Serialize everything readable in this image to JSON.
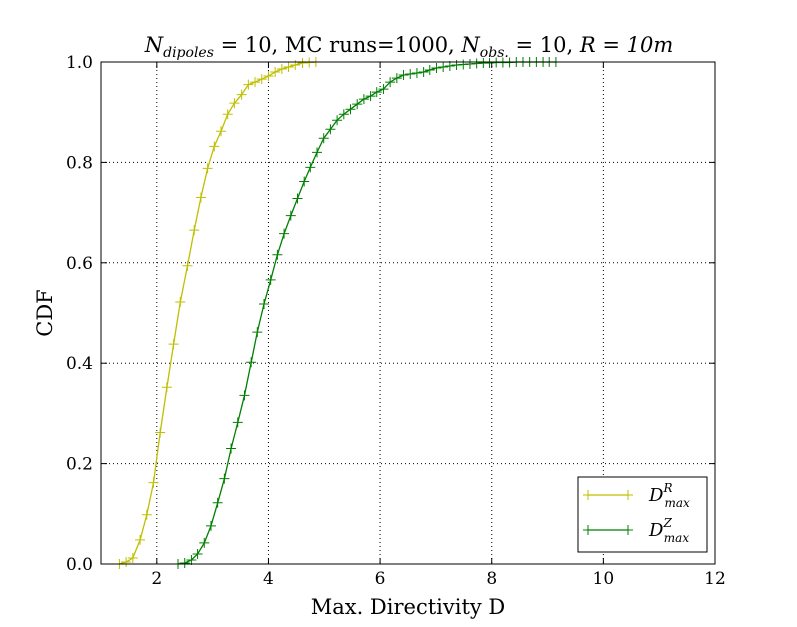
{
  "chart_data": {
    "type": "line",
    "title": "N_dipoles = 10, MC runs=1000, N_obs. = 10, R = 10m",
    "title_parts": {
      "n_dipoles_symbol": "N",
      "n_dipoles_sub": "dipoles",
      "n_dipoles_value": " = 10, MC runs=1000, ",
      "n_obs_symbol": "N",
      "n_obs_sub": "obs.",
      "n_obs_value": " = 10, ",
      "r_text": "R = 10m"
    },
    "xlabel": "Max. Directivity D",
    "ylabel": "CDF",
    "xlim": [
      1,
      12
    ],
    "ylim": [
      0,
      1.0
    ],
    "xticks": [
      2,
      4,
      6,
      8,
      10,
      12
    ],
    "yticks": [
      0.0,
      0.2,
      0.4,
      0.6,
      0.8,
      1.0
    ],
    "xtick_labels": [
      "2",
      "4",
      "6",
      "8",
      "10",
      "12"
    ],
    "ytick_labels": [
      "0.0",
      "0.2",
      "0.4",
      "0.6",
      "0.8",
      "1.0"
    ],
    "grid": true,
    "legend_position": "lower-right",
    "series": [
      {
        "legend_base": "D",
        "legend_sup": "R",
        "legend_sub": "max",
        "color": "#bfbf00",
        "x": [
          1.33,
          1.45,
          1.57,
          1.7,
          1.82,
          1.94,
          2.06,
          2.18,
          2.3,
          2.42,
          2.55,
          2.67,
          2.79,
          2.91,
          3.03,
          3.15,
          3.27,
          3.39,
          3.52,
          3.64,
          3.76,
          3.88,
          4.0,
          4.12,
          4.24,
          4.36,
          4.48,
          4.61,
          4.73,
          4.85
        ],
        "y": [
          0.0,
          0.004,
          0.012,
          0.048,
          0.098,
          0.162,
          0.262,
          0.352,
          0.438,
          0.522,
          0.594,
          0.665,
          0.73,
          0.788,
          0.832,
          0.862,
          0.896,
          0.918,
          0.935,
          0.955,
          0.96,
          0.966,
          0.972,
          0.98,
          0.986,
          0.99,
          0.994,
          0.998,
          0.999,
          1.0
        ]
      },
      {
        "legend_base": "D",
        "legend_sup": "Z",
        "legend_sub": "max",
        "color": "#007f00",
        "x": [
          2.38,
          2.5,
          2.62,
          2.73,
          2.85,
          2.97,
          3.09,
          3.21,
          3.33,
          3.45,
          3.57,
          3.69,
          3.8,
          3.92,
          4.04,
          4.16,
          4.28,
          4.4,
          4.52,
          4.64,
          4.75,
          4.87,
          4.99,
          5.11,
          5.23,
          5.35,
          5.47,
          5.59,
          5.71,
          5.83,
          5.94,
          6.06,
          6.18,
          6.3,
          6.42,
          6.54,
          6.66,
          6.78,
          6.89,
          7.01,
          7.13,
          7.25,
          7.37,
          7.49,
          7.61,
          7.73,
          7.85,
          7.96,
          8.08,
          8.2,
          8.32,
          8.44,
          8.56,
          8.68,
          8.8,
          8.92,
          9.03,
          9.15
        ],
        "y": [
          0.0,
          0.002,
          0.008,
          0.02,
          0.042,
          0.076,
          0.122,
          0.17,
          0.23,
          0.282,
          0.336,
          0.402,
          0.462,
          0.518,
          0.566,
          0.616,
          0.658,
          0.694,
          0.728,
          0.762,
          0.79,
          0.82,
          0.848,
          0.866,
          0.884,
          0.896,
          0.906,
          0.916,
          0.926,
          0.932,
          0.94,
          0.946,
          0.96,
          0.968,
          0.974,
          0.976,
          0.978,
          0.98,
          0.984,
          0.988,
          0.99,
          0.992,
          0.994,
          0.995,
          0.996,
          0.997,
          0.998,
          0.998,
          0.999,
          0.999,
          0.999,
          1.0,
          1.0,
          1.0,
          1.0,
          1.0,
          1.0,
          1.0
        ]
      }
    ]
  }
}
